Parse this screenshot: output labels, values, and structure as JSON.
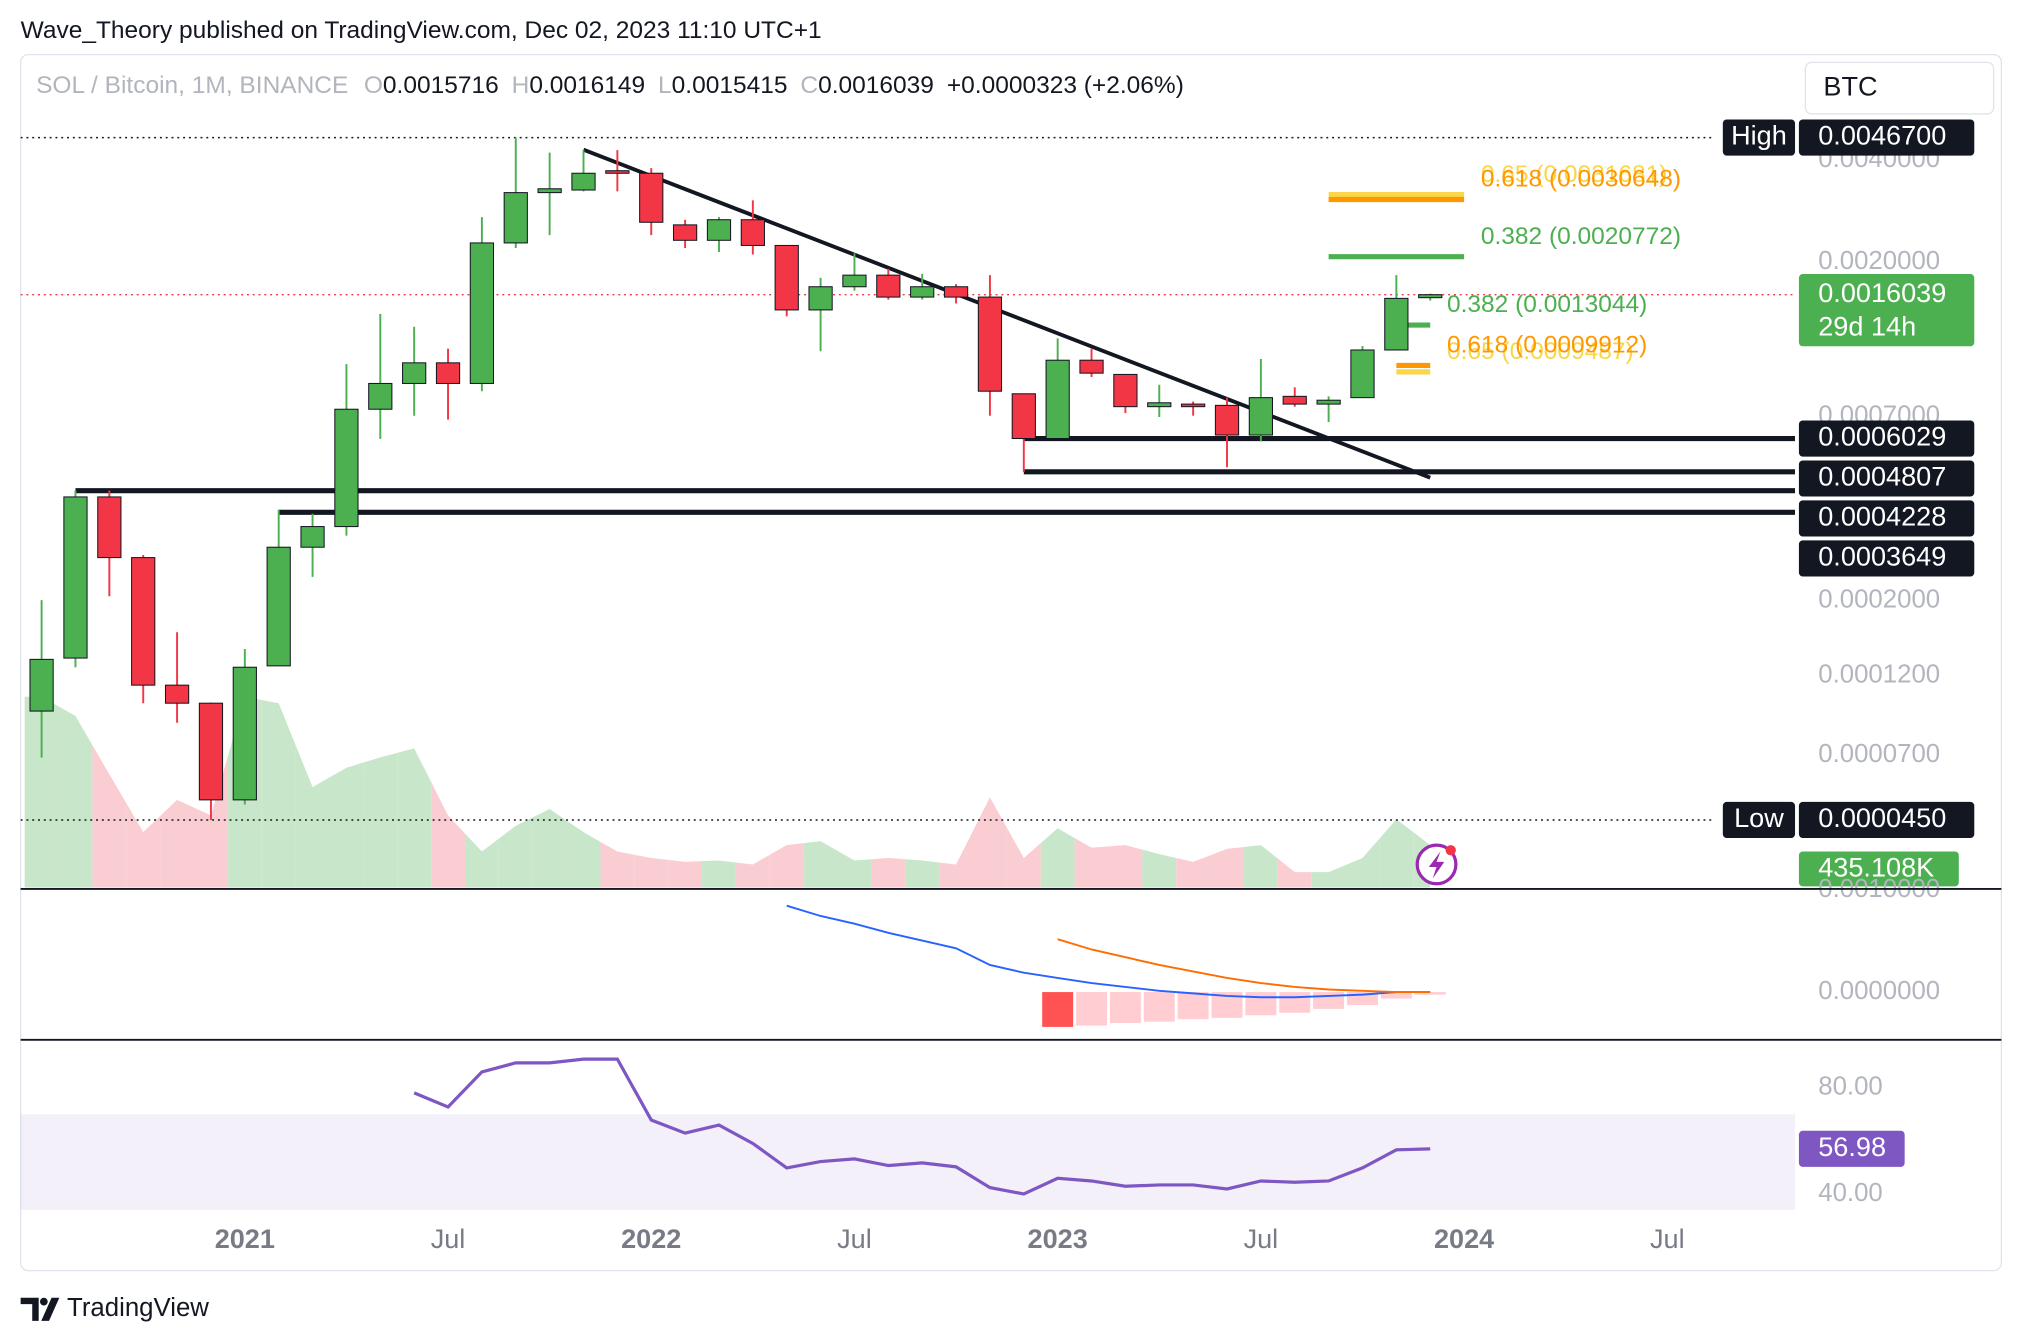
{
  "header": {
    "published": "Wave_Theory published on TradingView.com, Dec 02, 2023 11:10 UTC+1",
    "symbol": "SOL / Bitcoin, 1M, BINANCE",
    "o": "O",
    "h": "H",
    "l": "L",
    "c": "C",
    "change": "+0.0000323 (+2.06%)",
    "currency": "BTC"
  },
  "footer": {
    "brand": "TradingView"
  },
  "chart_data": [
    {
      "type": "candlestick",
      "log_scale": true,
      "x": [
        "2020-07",
        "2020-08",
        "2020-09",
        "2020-10",
        "2020-11",
        "2020-12",
        "2021-01",
        "2021-02",
        "2021-03",
        "2021-04",
        "2021-05",
        "2021-06",
        "2021-07",
        "2021-08",
        "2021-09",
        "2021-10",
        "2021-11",
        "2021-12",
        "2022-01",
        "2022-02",
        "2022-03",
        "2022-04",
        "2022-05",
        "2022-06",
        "2022-07",
        "2022-08",
        "2022-09",
        "2022-10",
        "2022-11",
        "2022-12",
        "2023-01",
        "2023-02",
        "2023-03",
        "2023-04",
        "2023-05",
        "2023-06",
        "2023-07",
        "2023-08",
        "2023-09",
        "2023-10",
        "2023-11",
        "2023-12"
      ],
      "open": [
        9.44e-05,
        0.0001354,
        0.0004052,
        0.0002682,
        0.0001126,
        9.96e-05,
        5.16e-05,
        0.0001284,
        0.0002878,
        0.0003312,
        0.0007358,
        0.0008768,
        0.001009,
        0.0008768,
        0.002281,
        0.003212,
        0.003269,
        0.003728,
        0.003664,
        0.002579,
        0.002322,
        0.002671,
        0.002242,
        0.001446,
        0.001693,
        0.001832,
        0.001578,
        0.001693,
        0.001578,
        0.0008174,
        0.0006029,
        0.001027,
        0.0009324,
        0.0007488,
        0.000762,
        0.0007554,
        0.0006174,
        0.0008032,
        0.000762,
        0.0007962,
        0.001101,
        0.0015716
      ],
      "high": [
        0.0002008,
        0.0004234,
        0.0004234,
        0.000273,
        0.0001614,
        0.0001,
        0.000144,
        0.0003712,
        0.0003616,
        0.001,
        0.001408,
        0.00129,
        0.001111,
        0.002719,
        0.00467,
        0.004215,
        0.00429,
        0.00429,
        0.003794,
        0.002671,
        0.002719,
        0.003047,
        0.002242,
        0.0018,
        0.002127,
        0.001914,
        0.001848,
        0.001723,
        0.001832,
        0.0008174,
        0.001192,
        0.001111,
        0.0009324,
        0.0008692,
        0.0007754,
        0.0007962,
        0.001036,
        0.000854,
        0.0008032,
        0.001131,
        0.001832,
        0.0016149
      ],
      "low": [
        6.88e-05,
        0.0001272,
        0.0002062,
        9.96e-05,
        8.72e-05,
        4.5e-05,
        5e-05,
        0.0001284,
        0.0002352,
        0.0003114,
        0.0006014,
        0.0007042,
        0.0006858,
        0.0008318,
        0.002203,
        0.002405,
        0.00324,
        0.00324,
        0.002405,
        0.002203,
        0.002145,
        0.002108,
        0.001384,
        0.001092,
        0.001649,
        0.001551,
        0.001551,
        0.001511,
        0.0007042,
        0.0004807,
        0.0006014,
        0.0009162,
        0.0007166,
        0.000698,
        0.0007042,
        0.0004958,
        0.0005908,
        0.0007488,
        0.000674,
        0.0007962,
        0.001101,
        0.0015415
      ],
      "close": [
        0.0001342,
        0.0004052,
        0.0002682,
        0.0001126,
        9.96e-05,
        5.16e-05,
        0.0001272,
        0.0002878,
        0.0003312,
        0.0007358,
        0.0008768,
        0.001009,
        0.0008768,
        0.002281,
        0.003212,
        0.003297,
        0.003664,
        0.003664,
        0.002625,
        0.002322,
        0.002671,
        0.002242,
        0.001446,
        0.001693,
        0.001832,
        0.001578,
        0.001693,
        0.001578,
        0.0008318,
        0.0006029,
        0.001027,
        0.0009406,
        0.0007488,
        0.0007688,
        0.0007488,
        0.0006174,
        0.0007962,
        0.000762,
        0.0007824,
        0.001101,
        0.001564,
        0.0016039
      ],
      "up_color": "#4caf50",
      "down_color": "#f23645",
      "ylim": [
        2.84e-05,
        0.008
      ],
      "yticks": [
        {
          "value": 0.004,
          "label": "0.0040000"
        },
        {
          "value": 0.002,
          "label": "0.0020000"
        },
        {
          "value": 0.0007,
          "label": "0.0007000"
        },
        {
          "value": 0.0002,
          "label": "0.0002000"
        },
        {
          "value": 0.00012,
          "label": "0.0001200"
        },
        {
          "value": 7e-05,
          "label": "0.0000700"
        }
      ],
      "xlim": [
        "2020-06",
        "2024-11"
      ],
      "xticks": [
        {
          "value": "2021-01",
          "label": "2021"
        },
        {
          "value": "2021-07",
          "label": "Jul"
        },
        {
          "value": "2022-01",
          "label": "2022"
        },
        {
          "value": "2022-07",
          "label": "Jul"
        },
        {
          "value": "2023-01",
          "label": "2023"
        },
        {
          "value": "2023-07",
          "label": "Jul"
        },
        {
          "value": "2024-01",
          "label": "2024"
        },
        {
          "value": "2024-07",
          "label": "Jul"
        }
      ],
      "high_marker": {
        "label": "High",
        "value": {
          "value": 0.00467,
          "label": "0.0046700"
        }
      },
      "low_marker": {
        "label": "Low",
        "value": {
          "value": 4.5e-05,
          "label": "0.0000450"
        }
      },
      "countdown": "29d 14h",
      "levels": [
        {
          "value": 0.0006029,
          "from": "2022-12"
        },
        {
          "value": 0.0004807,
          "from": "2022-12"
        },
        {
          "value": 0.0004228,
          "from": "2020-08"
        },
        {
          "value": 0.0003649,
          "from": "2021-02"
        }
      ],
      "fib_levels": [
        {
          "label": "0.65 (0.0031681)",
          "value": 0.0031681,
          "color": "#f9d64a",
          "from": "2023-09",
          "to": "2024-01"
        },
        {
          "label": "0.618 (0.0030648)",
          "value": 0.0030648,
          "color": "#ff9800",
          "from": "2023-09",
          "to": "2024-01"
        },
        {
          "label": "0.382 (0.0020772)",
          "value": 0.0020772,
          "color": "#4caf50",
          "from": "2023-09",
          "to": "2024-01"
        },
        {
          "label": "0.382 (0.0013044)",
          "value": 0.0013044,
          "color": "#4caf50",
          "from": "2023-11",
          "to": "2023-12"
        },
        {
          "label": "0.65 (0.0009487)",
          "value": 0.0009487,
          "color": "#f9d64a",
          "from": "2023-11",
          "to": "2023-12"
        },
        {
          "label": "0.618 (0.0009912)",
          "value": 0.0009912,
          "color": "#ff9800",
          "from": "2023-11",
          "to": "2023-12"
        }
      ],
      "trendline": {
        "x": [
          "2021-11",
          "2023-12"
        ],
        "values": [
          0.0043,
          0.000462
        ]
      },
      "volume": {
        "values": [
          1951000,
          1754000,
          1160000,
          567000,
          897000,
          738000,
          1951000,
          1885000,
          1028000,
          1226000,
          1332000,
          1424000,
          738000,
          369000,
          633000,
          804000,
          567000,
          369000,
          303000,
          264000,
          277000,
          237000,
          435000,
          475000,
          277000,
          303000,
          277000,
          237000,
          923000,
          303000,
          607000,
          409000,
          435000,
          343000,
          264000,
          396000,
          435000,
          158000,
          158000,
          303000,
          699000,
          435108
        ],
        "value_labels": [
          null,
          null,
          null,
          null,
          null,
          null,
          null,
          null,
          null,
          null,
          null,
          null,
          null,
          null,
          null,
          null,
          null,
          null,
          null,
          null,
          null,
          null,
          null,
          null,
          null,
          null,
          null,
          null,
          null,
          null,
          null,
          null,
          null,
          null,
          null,
          null,
          null,
          null,
          null,
          null,
          null,
          "435.108K"
        ],
        "up_color": "#c8e6c9",
        "down_color": "#facdd2"
      }
    },
    {
      "type": "macd",
      "series": [
        {
          "color": "#2962ff",
          "values": [
            null,
            null,
            null,
            null,
            null,
            null,
            null,
            null,
            null,
            null,
            null,
            null,
            null,
            null,
            null,
            null,
            null,
            null,
            null,
            null,
            null,
            null,
            0.000848,
            0.000747,
            0.000671,
            0.000582,
            0.000506,
            0.00043,
            0.000266,
            0.00019,
            0.000139,
            8.86e-05,
            5.06e-05,
            1.27e-05,
            -1.27e-05,
            -3.8e-05,
            -5.06e-05,
            -5.06e-05,
            -3.8e-05,
            -2.53e-05,
            0,
            0
          ]
        },
        {
          "color": "#ff6d00",
          "values": [
            null,
            null,
            null,
            null,
            null,
            null,
            null,
            null,
            null,
            null,
            null,
            null,
            null,
            null,
            null,
            null,
            null,
            null,
            null,
            null,
            null,
            null,
            null,
            null,
            null,
            null,
            null,
            null,
            null,
            null,
            0.000519,
            0.000418,
            0.000342,
            0.000266,
            0.000203,
            0.000139,
            8.86e-05,
            5.06e-05,
            2.53e-05,
            1.27e-05,
            0,
            0
          ]
        }
      ],
      "histogram": [
        null,
        null,
        null,
        null,
        null,
        null,
        null,
        null,
        null,
        null,
        null,
        null,
        null,
        null,
        null,
        null,
        null,
        null,
        null,
        null,
        null,
        null,
        null,
        null,
        null,
        null,
        null,
        null,
        null,
        null,
        -0.000342,
        -0.000329,
        -0.000304,
        -0.000291,
        -0.000266,
        -0.000253,
        -0.000228,
        -0.000203,
        -0.000165,
        -0.000127,
        -6.33e-05,
        -2.53e-05
      ],
      "hist_colors": [
        "#ff5252",
        "#ffcdd2"
      ],
      "ylim": [
        -0.000456,
        0.001
      ],
      "yticks": [
        {
          "value": 0.001,
          "label": "0.0010000"
        },
        {
          "value": 0,
          "label": "0.0000000"
        }
      ]
    },
    {
      "type": "line",
      "color": "#7e57c2",
      "values": [
        null,
        null,
        null,
        null,
        null,
        null,
        null,
        null,
        null,
        null,
        null,
        78.0,
        72.7,
        85.9,
        89.3,
        89.3,
        90.7,
        90.7,
        67.8,
        62.9,
        65.9,
        59.0,
        49.8,
        52.2,
        53.2,
        50.7,
        51.7,
        50.2,
        42.4,
        40.0,
        45.9,
        44.9,
        42.9,
        43.4,
        43.4,
        41.9,
        44.9,
        44.4,
        44.9,
        49.8,
        56.6,
        56.98
      ],
      "band": [
        30,
        70
      ],
      "band_color": "rgba(126,87,194,0.09)",
      "ylim": [
        33,
        97
      ],
      "yticks": [
        {
          "value": 80,
          "label": "80.00"
        },
        {
          "value": 40,
          "label": "40.00"
        }
      ]
    }
  ]
}
